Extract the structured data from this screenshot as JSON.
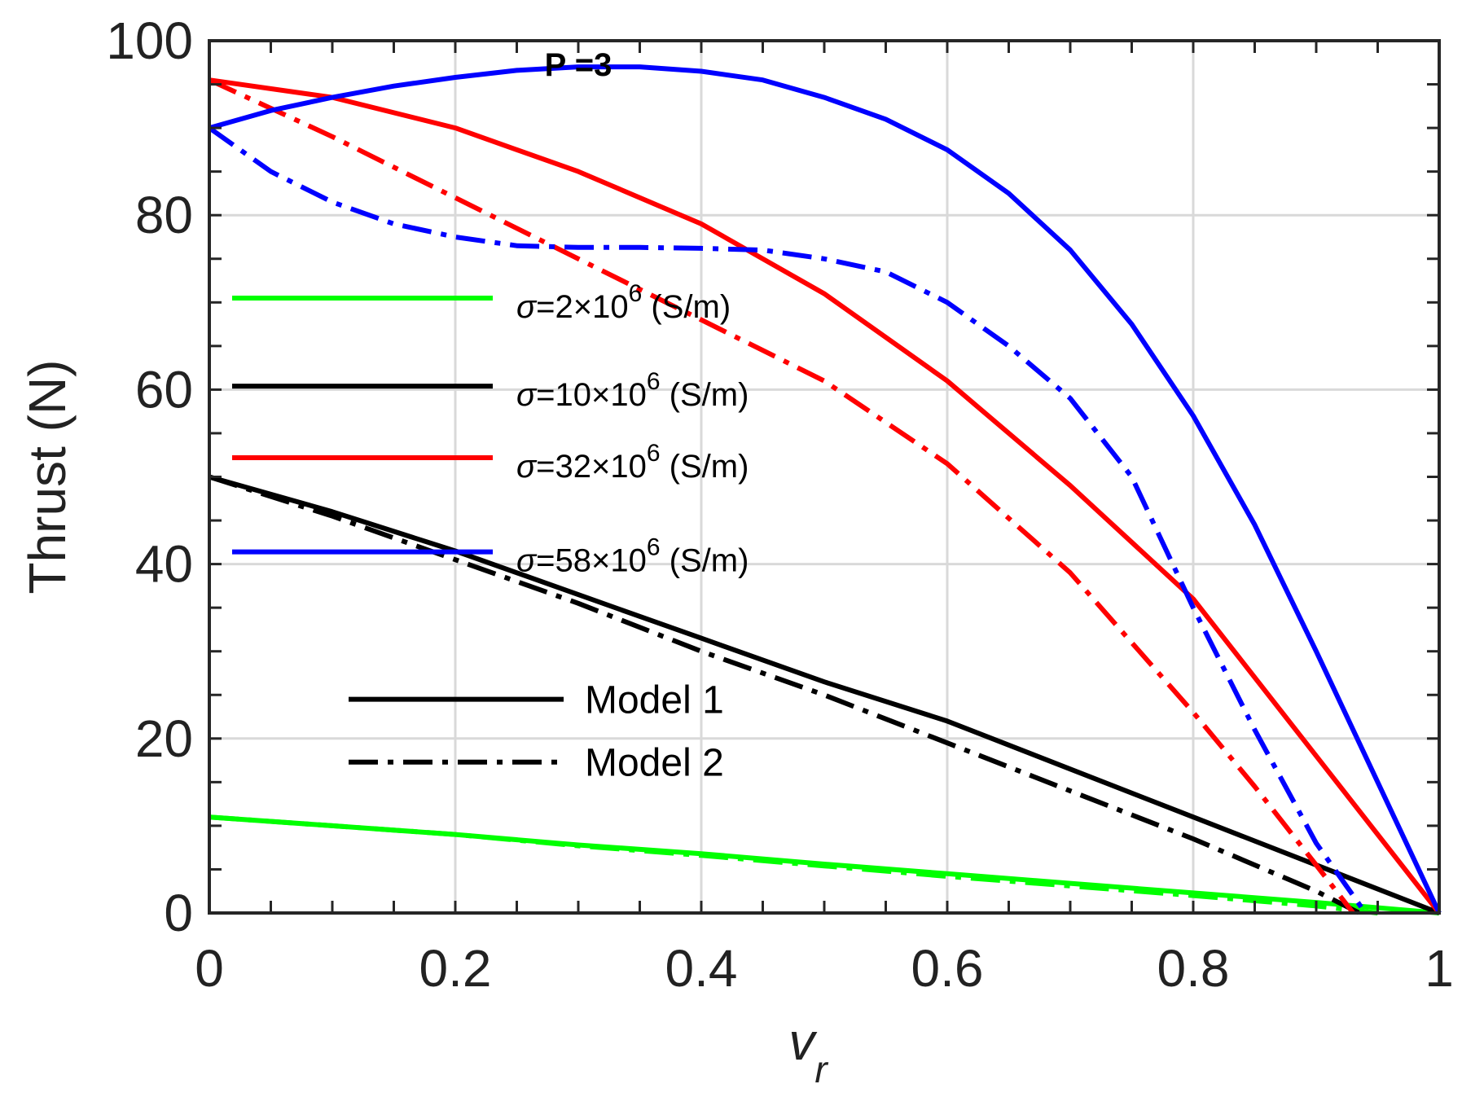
{
  "chart_data": {
    "type": "line",
    "title": "",
    "annotation": "P =3",
    "xlabel": {
      "main": "v",
      "subscript": "r"
    },
    "ylabel": "Thrust (N)",
    "xlim": [
      0,
      1
    ],
    "ylim": [
      0,
      100
    ],
    "x_ticks": [
      0,
      0.2,
      0.4,
      0.6,
      0.8,
      1
    ],
    "x_tick_labels": [
      "0",
      "0.2",
      "0.4",
      "0.6",
      "0.8",
      "1"
    ],
    "y_ticks": [
      0,
      20,
      40,
      60,
      80,
      100
    ],
    "y_tick_labels": [
      "0",
      "20",
      "40",
      "60",
      "80",
      "100"
    ],
    "grid": true,
    "colors": {
      "green": "#00ff00",
      "black": "#000000",
      "red": "#ff0000",
      "blue": "#0000ff",
      "grid": "#d9d9d9",
      "axis": "#262626"
    },
    "legend": {
      "placement": "center-left",
      "conductivity_entries": [
        {
          "sigma_symbol": "σ",
          "value": "=2×10",
          "exponent": "6",
          "unit": " (S/m)",
          "color": "#00ff00"
        },
        {
          "sigma_symbol": "σ",
          "value": "=10×10",
          "exponent": "6",
          "unit": " (S/m)",
          "color": "#000000"
        },
        {
          "sigma_symbol": "σ",
          "value": "=32×10",
          "exponent": "6",
          "unit": " (S/m)",
          "color": "#ff0000"
        },
        {
          "sigma_symbol": "σ",
          "value": "=58×10",
          "exponent": "6",
          "unit": " (S/m)",
          "color": "#0000ff"
        }
      ],
      "model_entries": [
        {
          "label": "Model 1",
          "style": "solid"
        },
        {
          "label": "Model 2",
          "style": "dashdot"
        }
      ]
    },
    "series": [
      {
        "name": "σ=2×10^6 Model 1",
        "color": "#00ff00",
        "style": "solid",
        "x": [
          0,
          0.1,
          0.2,
          0.3,
          0.4,
          0.5,
          0.6,
          0.7,
          0.8,
          0.9,
          1.0
        ],
        "y": [
          11,
          10,
          9,
          7.8,
          6.8,
          5.6,
          4.5,
          3.4,
          2.3,
          1.2,
          0
        ]
      },
      {
        "name": "σ=2×10^6 Model 2",
        "color": "#00ff00",
        "style": "dashdot",
        "x": [
          0,
          0.1,
          0.2,
          0.3,
          0.4,
          0.5,
          0.6,
          0.7,
          0.8,
          0.9,
          0.95
        ],
        "y": [
          11,
          10,
          9,
          7.7,
          6.6,
          5.4,
          4.2,
          3.1,
          2.0,
          0.8,
          0
        ]
      },
      {
        "name": "σ=10×10^6 Model 1",
        "color": "#000000",
        "style": "solid",
        "x": [
          0,
          0.1,
          0.2,
          0.3,
          0.4,
          0.5,
          0.6,
          0.7,
          0.8,
          0.9,
          1.0
        ],
        "y": [
          50,
          46,
          41.5,
          36.5,
          31.5,
          26.5,
          22,
          16.5,
          11,
          5.5,
          0
        ]
      },
      {
        "name": "σ=10×10^6 Model 2",
        "color": "#000000",
        "style": "dashdot",
        "x": [
          0,
          0.1,
          0.2,
          0.3,
          0.4,
          0.5,
          0.6,
          0.7,
          0.8,
          0.9,
          0.935
        ],
        "y": [
          50,
          45.5,
          40.5,
          35.5,
          30,
          25,
          19.5,
          14,
          8.5,
          2.5,
          0
        ]
      },
      {
        "name": "σ=32×10^6 Model 1",
        "color": "#ff0000",
        "style": "solid",
        "x": [
          0,
          0.1,
          0.2,
          0.3,
          0.4,
          0.5,
          0.6,
          0.7,
          0.8,
          0.9,
          1.0
        ],
        "y": [
          95.5,
          93.5,
          90,
          85,
          79,
          71,
          61,
          49,
          36,
          18,
          0
        ]
      },
      {
        "name": "σ=32×10^6 Model 2",
        "color": "#ff0000",
        "style": "dashdot",
        "x": [
          0,
          0.1,
          0.2,
          0.3,
          0.4,
          0.5,
          0.6,
          0.7,
          0.8,
          0.85,
          0.9,
          0.93
        ],
        "y": [
          95.5,
          89,
          82,
          75,
          68,
          61,
          51.5,
          39,
          23,
          14.5,
          5.5,
          0
        ]
      },
      {
        "name": "σ=58×10^6 Model 1",
        "color": "#0000ff",
        "style": "solid",
        "x": [
          0,
          0.05,
          0.1,
          0.15,
          0.2,
          0.25,
          0.3,
          0.35,
          0.4,
          0.45,
          0.5,
          0.55,
          0.6,
          0.65,
          0.7,
          0.75,
          0.8,
          0.85,
          0.9,
          0.95,
          1.0
        ],
        "y": [
          90,
          92,
          93.5,
          94.8,
          95.8,
          96.6,
          97,
          97,
          96.5,
          95.5,
          93.5,
          91,
          87.5,
          82.5,
          76,
          67.5,
          57,
          44.5,
          30,
          15,
          0
        ]
      },
      {
        "name": "σ=58×10^6 Model 2",
        "color": "#0000ff",
        "style": "dashdot",
        "x": [
          0,
          0.05,
          0.1,
          0.15,
          0.2,
          0.25,
          0.3,
          0.35,
          0.4,
          0.45,
          0.5,
          0.55,
          0.6,
          0.65,
          0.7,
          0.75,
          0.8,
          0.85,
          0.9,
          0.94
        ],
        "y": [
          90,
          85,
          81.5,
          79,
          77.5,
          76.5,
          76.3,
          76.3,
          76.2,
          76,
          75,
          73.5,
          70,
          65,
          59,
          50,
          35,
          21,
          8,
          0
        ]
      }
    ]
  }
}
